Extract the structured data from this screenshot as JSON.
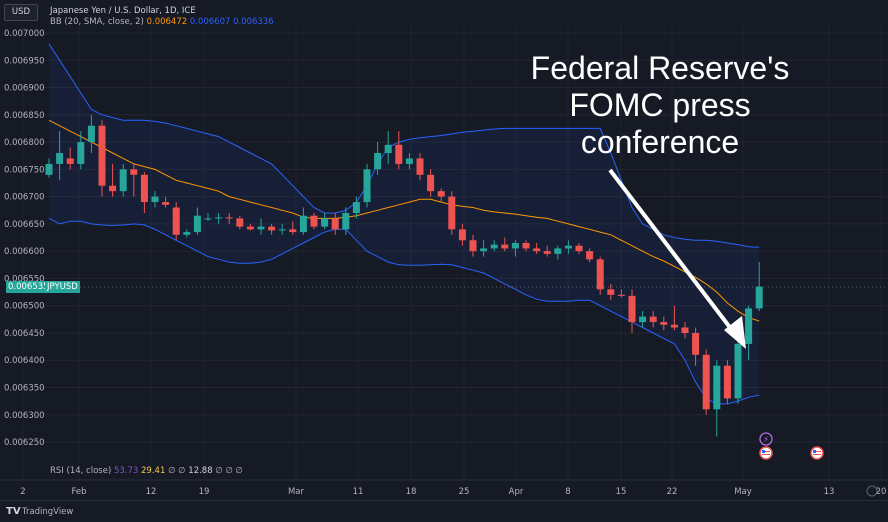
{
  "currency": "USD",
  "header": {
    "title": "Japanese Yen / U.S. Dollar, 1D, ICE",
    "bb_label": "BB (20, SMA, close, 2)",
    "bb_basis": "0.006472",
    "bb_upper": "0.006607",
    "bb_lower": "0.006336"
  },
  "last_price": {
    "value": "0.006535",
    "symbol": "JPYUSD"
  },
  "annotation": {
    "line1": "Federal Reserve's",
    "line2": "FOMC press",
    "line3": "conference"
  },
  "rsi": {
    "label": "RSI (14, close)",
    "v1": "53.73",
    "v2": "29.41",
    "d1": "∅",
    "d2": "∅",
    "v3": "12.88",
    "d3": "∅",
    "d4": "∅",
    "d5": "∅"
  },
  "footer": {
    "brand": "TradingView"
  },
  "colors": {
    "up": "#26a69a",
    "down": "#ef5350",
    "basis": "#ff9800",
    "bands": "#2962ff",
    "bg": "#161a25"
  },
  "chart_data": {
    "type": "candlestick",
    "title": "Japanese Yen / U.S. Dollar, 1D, ICE",
    "y_ticks": [
      "0.007000",
      "0.006950",
      "0.006900",
      "0.006850",
      "0.006800",
      "0.006750",
      "0.006700",
      "0.006650",
      "0.006600",
      "0.006550",
      "0.006500",
      "0.006450",
      "0.006400",
      "0.006350",
      "0.006300",
      "0.006250"
    ],
    "ylim": [
      0.00622,
      0.00704
    ],
    "x_ticks": [
      "2",
      "Feb",
      "12",
      "19",
      "Mar",
      "11",
      "18",
      "25",
      "Apr",
      "8",
      "15",
      "22",
      "May",
      "13",
      "20"
    ],
    "candles": [
      {
        "o": 0.00674,
        "h": 0.00677,
        "l": 0.006735,
        "c": 0.00676
      },
      {
        "o": 0.00676,
        "h": 0.00682,
        "l": 0.00673,
        "c": 0.00678
      },
      {
        "o": 0.00677,
        "h": 0.00679,
        "l": 0.00675,
        "c": 0.00676
      },
      {
        "o": 0.00676,
        "h": 0.00682,
        "l": 0.00675,
        "c": 0.0068
      },
      {
        "o": 0.0068,
        "h": 0.00685,
        "l": 0.00678,
        "c": 0.00683
      },
      {
        "o": 0.00683,
        "h": 0.00684,
        "l": 0.0067,
        "c": 0.00672
      },
      {
        "o": 0.00672,
        "h": 0.00676,
        "l": 0.0067,
        "c": 0.00671
      },
      {
        "o": 0.00671,
        "h": 0.00676,
        "l": 0.0067,
        "c": 0.00675
      },
      {
        "o": 0.00675,
        "h": 0.00676,
        "l": 0.0067,
        "c": 0.00674
      },
      {
        "o": 0.00674,
        "h": 0.006745,
        "l": 0.00667,
        "c": 0.00669
      },
      {
        "o": 0.00669,
        "h": 0.00671,
        "l": 0.00668,
        "c": 0.0067
      },
      {
        "o": 0.00669,
        "h": 0.0067,
        "l": 0.00668,
        "c": 0.006685
      },
      {
        "o": 0.00668,
        "h": 0.00669,
        "l": 0.00662,
        "c": 0.00663
      },
      {
        "o": 0.00663,
        "h": 0.00664,
        "l": 0.006625,
        "c": 0.006635
      },
      {
        "o": 0.006635,
        "h": 0.00668,
        "l": 0.00663,
        "c": 0.006665
      },
      {
        "o": 0.00666,
        "h": 0.00667,
        "l": 0.006655,
        "c": 0.00666
      },
      {
        "o": 0.00666,
        "h": 0.00667,
        "l": 0.00665,
        "c": 0.006662
      },
      {
        "o": 0.006662,
        "h": 0.00667,
        "l": 0.00665,
        "c": 0.00666
      },
      {
        "o": 0.00666,
        "h": 0.006665,
        "l": 0.00664,
        "c": 0.006645
      },
      {
        "o": 0.006645,
        "h": 0.00665,
        "l": 0.006638,
        "c": 0.00664
      },
      {
        "o": 0.00664,
        "h": 0.00666,
        "l": 0.00663,
        "c": 0.006645
      },
      {
        "o": 0.006645,
        "h": 0.00665,
        "l": 0.00663,
        "c": 0.006638
      },
      {
        "o": 0.006638,
        "h": 0.00665,
        "l": 0.00663,
        "c": 0.00664
      },
      {
        "o": 0.00664,
        "h": 0.006655,
        "l": 0.00663,
        "c": 0.006635
      },
      {
        "o": 0.006635,
        "h": 0.00668,
        "l": 0.00663,
        "c": 0.006665
      },
      {
        "o": 0.006665,
        "h": 0.00667,
        "l": 0.00664,
        "c": 0.006645
      },
      {
        "o": 0.006645,
        "h": 0.00667,
        "l": 0.00664,
        "c": 0.00666
      },
      {
        "o": 0.00666,
        "h": 0.00667,
        "l": 0.00663,
        "c": 0.00664
      },
      {
        "o": 0.00664,
        "h": 0.00668,
        "l": 0.00663,
        "c": 0.00667
      },
      {
        "o": 0.00667,
        "h": 0.0067,
        "l": 0.00666,
        "c": 0.00669
      },
      {
        "o": 0.00669,
        "h": 0.00676,
        "l": 0.00668,
        "c": 0.00675
      },
      {
        "o": 0.00675,
        "h": 0.0068,
        "l": 0.00674,
        "c": 0.00678
      },
      {
        "o": 0.00678,
        "h": 0.00682,
        "l": 0.00676,
        "c": 0.006795
      },
      {
        "o": 0.006795,
        "h": 0.00682,
        "l": 0.00675,
        "c": 0.00676
      },
      {
        "o": 0.00676,
        "h": 0.00678,
        "l": 0.00675,
        "c": 0.00677
      },
      {
        "o": 0.00677,
        "h": 0.00678,
        "l": 0.00673,
        "c": 0.00674
      },
      {
        "o": 0.00674,
        "h": 0.00675,
        "l": 0.0067,
        "c": 0.00671
      },
      {
        "o": 0.00671,
        "h": 0.006715,
        "l": 0.00669,
        "c": 0.0067
      },
      {
        "o": 0.0067,
        "h": 0.00671,
        "l": 0.00663,
        "c": 0.00664
      },
      {
        "o": 0.00664,
        "h": 0.00665,
        "l": 0.00661,
        "c": 0.00662
      },
      {
        "o": 0.00662,
        "h": 0.00663,
        "l": 0.00659,
        "c": 0.0066
      },
      {
        "o": 0.0066,
        "h": 0.00662,
        "l": 0.00659,
        "c": 0.006605
      },
      {
        "o": 0.006605,
        "h": 0.00662,
        "l": 0.0066,
        "c": 0.006612
      },
      {
        "o": 0.006612,
        "h": 0.006625,
        "l": 0.0066,
        "c": 0.006605
      },
      {
        "o": 0.006605,
        "h": 0.00662,
        "l": 0.00659,
        "c": 0.006615
      },
      {
        "o": 0.006615,
        "h": 0.00662,
        "l": 0.0066,
        "c": 0.006605
      },
      {
        "o": 0.006605,
        "h": 0.006615,
        "l": 0.006595,
        "c": 0.0066
      },
      {
        "o": 0.0066,
        "h": 0.00661,
        "l": 0.00659,
        "c": 0.006595
      },
      {
        "o": 0.006595,
        "h": 0.00661,
        "l": 0.006585,
        "c": 0.006605
      },
      {
        "o": 0.006605,
        "h": 0.00662,
        "l": 0.006595,
        "c": 0.00661
      },
      {
        "o": 0.00661,
        "h": 0.006615,
        "l": 0.006595,
        "c": 0.0066
      },
      {
        "o": 0.0066,
        "h": 0.006605,
        "l": 0.00658,
        "c": 0.006585
      },
      {
        "o": 0.006585,
        "h": 0.00659,
        "l": 0.00652,
        "c": 0.00653
      },
      {
        "o": 0.00653,
        "h": 0.00654,
        "l": 0.00651,
        "c": 0.00652
      },
      {
        "o": 0.00652,
        "h": 0.00653,
        "l": 0.006515,
        "c": 0.006518
      },
      {
        "o": 0.006518,
        "h": 0.00653,
        "l": 0.00645,
        "c": 0.00647
      },
      {
        "o": 0.00647,
        "h": 0.00649,
        "l": 0.00646,
        "c": 0.00648
      },
      {
        "o": 0.00648,
        "h": 0.00649,
        "l": 0.00646,
        "c": 0.00647
      },
      {
        "o": 0.00647,
        "h": 0.00648,
        "l": 0.006455,
        "c": 0.006465
      },
      {
        "o": 0.006465,
        "h": 0.0065,
        "l": 0.006455,
        "c": 0.00646
      },
      {
        "o": 0.00646,
        "h": 0.00647,
        "l": 0.00644,
        "c": 0.00645
      },
      {
        "o": 0.00645,
        "h": 0.00646,
        "l": 0.00639,
        "c": 0.00641
      },
      {
        "o": 0.00641,
        "h": 0.00642,
        "l": 0.0063,
        "c": 0.00631
      },
      {
        "o": 0.00631,
        "h": 0.0064,
        "l": 0.00626,
        "c": 0.00639
      },
      {
        "o": 0.00639,
        "h": 0.0064,
        "l": 0.00632,
        "c": 0.00633
      },
      {
        "o": 0.00633,
        "h": 0.00644,
        "l": 0.00632,
        "c": 0.00643
      },
      {
        "o": 0.00643,
        "h": 0.0065,
        "l": 0.0064,
        "c": 0.006495
      },
      {
        "o": 0.006495,
        "h": 0.00658,
        "l": 0.00649,
        "c": 0.006535
      }
    ],
    "basis": [
      0.00684,
      0.00683,
      0.00682,
      0.00681,
      0.0068,
      0.00679,
      0.00678,
      0.00677,
      0.00676,
      0.006755,
      0.00675,
      0.00674,
      0.00673,
      0.006725,
      0.00672,
      0.006715,
      0.00671,
      0.0067,
      0.006695,
      0.00669,
      0.006685,
      0.00668,
      0.006675,
      0.00667,
      0.006662,
      0.00666,
      0.00666,
      0.00666,
      0.006662,
      0.006665,
      0.00667,
      0.006675,
      0.00668,
      0.006685,
      0.00669,
      0.006695,
      0.006695,
      0.00669,
      0.006685,
      0.006682,
      0.00668,
      0.006675,
      0.006672,
      0.00667,
      0.006668,
      0.006665,
      0.006662,
      0.00666,
      0.006655,
      0.00665,
      0.006645,
      0.00664,
      0.006635,
      0.00663,
      0.00662,
      0.00661,
      0.0066,
      0.00659,
      0.006582,
      0.006572,
      0.006562,
      0.006552,
      0.00654,
      0.006525,
      0.006505,
      0.00649,
      0.006478,
      0.006472
    ],
    "upper": [
      0.00698,
      0.00695,
      0.00692,
      0.00689,
      0.00686,
      0.00685,
      0.006845,
      0.00684,
      0.00684,
      0.00684,
      0.006838,
      0.006835,
      0.00683,
      0.006825,
      0.00682,
      0.006815,
      0.00681,
      0.0068,
      0.00679,
      0.00678,
      0.00677,
      0.00676,
      0.00674,
      0.00672,
      0.0067,
      0.00668,
      0.00667,
      0.00667,
      0.006675,
      0.00669,
      0.00672,
      0.00676,
      0.00679,
      0.0068,
      0.006805,
      0.006808,
      0.00681,
      0.006812,
      0.006815,
      0.006818,
      0.00682,
      0.006822,
      0.006824,
      0.006825,
      0.006825,
      0.006825,
      0.006825,
      0.006825,
      0.006825,
      0.006825,
      0.006825,
      0.006825,
      0.006825,
      0.00678,
      0.00673,
      0.00668,
      0.00665,
      0.00664,
      0.00663,
      0.006625,
      0.006622,
      0.00662,
      0.00662,
      0.006618,
      0.006615,
      0.006612,
      0.006608,
      0.006607
    ],
    "lower": [
      0.00666,
      0.00665,
      0.006655,
      0.006655,
      0.00665,
      0.006648,
      0.006647,
      0.006648,
      0.00665,
      0.006648,
      0.00664,
      0.00663,
      0.00662,
      0.00661,
      0.0066,
      0.00659,
      0.006585,
      0.00658,
      0.006578,
      0.006578,
      0.00658,
      0.006585,
      0.006595,
      0.006605,
      0.006615,
      0.006625,
      0.006635,
      0.00664,
      0.00664,
      0.00662,
      0.0066,
      0.00659,
      0.00658,
      0.006575,
      0.006574,
      0.006574,
      0.006575,
      0.006576,
      0.006575,
      0.00657,
      0.006565,
      0.00656,
      0.00655,
      0.00654,
      0.00653,
      0.00652,
      0.006512,
      0.006508,
      0.006508,
      0.006508,
      0.00651,
      0.00651,
      0.0065,
      0.00649,
      0.00648,
      0.00647,
      0.00646,
      0.00645,
      0.00644,
      0.00643,
      0.0064,
      0.00636,
      0.00633,
      0.00632,
      0.00632,
      0.006325,
      0.006332,
      0.006336
    ]
  }
}
